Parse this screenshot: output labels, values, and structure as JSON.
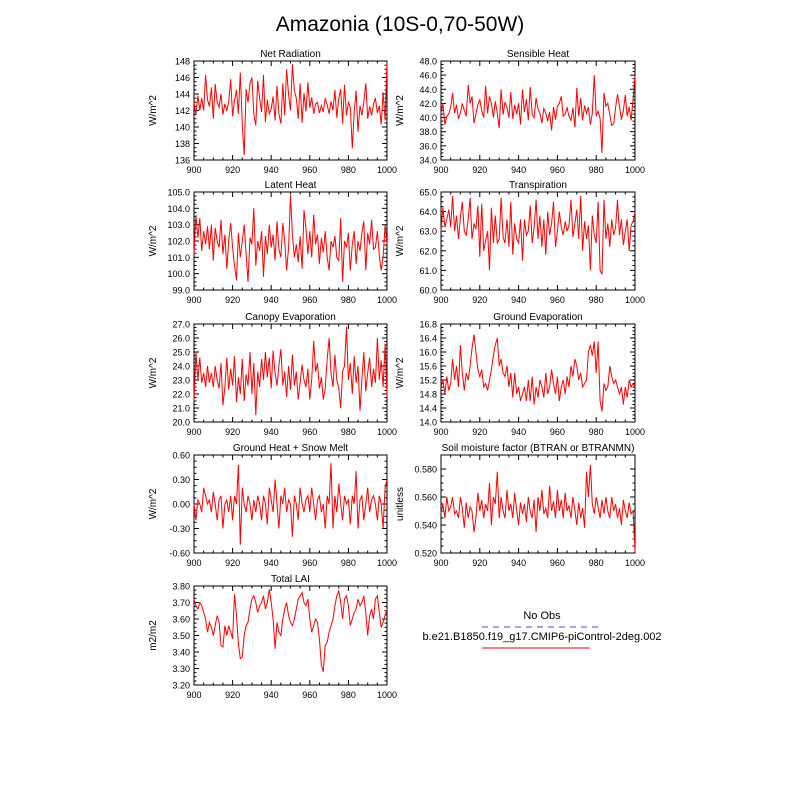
{
  "figure_title": "Amazonia (10S-0,70-50W)",
  "series_color": "#ff0000",
  "obs_color": "#4444dd",
  "legend": {
    "obs_label": "No Obs",
    "model_label": "b.e21.B1850.f19_g17.CMIP6-piControl-2deg.002"
  },
  "chart_data": [
    {
      "type": "line",
      "title": "Net Radiation",
      "ylabel": "W/m^2",
      "xlim": [
        900,
        1000
      ],
      "xticks": [
        900,
        920,
        940,
        960,
        980,
        1000
      ],
      "ylim": [
        136,
        148
      ],
      "yticks": [
        "136",
        "138",
        "140",
        "142",
        "144",
        "146",
        "148"
      ],
      "x_start": 900,
      "x_end": 1000,
      "values": [
        143.0,
        141.5,
        143.8,
        142.0,
        143.5,
        142.0,
        146.3,
        143.3,
        142.5,
        144.8,
        141.0,
        145.2,
        143.0,
        142.4,
        144.0,
        141.5,
        142.8,
        142.0,
        143.0,
        145.8,
        141.3,
        143.2,
        144.5,
        141.6,
        146.6,
        140.2,
        136.6,
        144.6,
        143.0,
        145.3,
        146.0,
        141.6,
        140.2,
        145.6,
        143.5,
        141.8,
        146.3,
        140.6,
        143.3,
        141.6,
        142.2,
        143.7,
        140.8,
        145.0,
        141.6,
        140.4,
        145.3,
        141.4,
        147.0,
        143.9,
        142.0,
        147.6,
        144.4,
        143.5,
        141.0,
        145.3,
        140.5,
        144.1,
        141.9,
        145.4,
        142.3,
        143.6,
        141.6,
        142.8,
        143.0,
        141.7,
        142.6,
        141.8,
        143.5,
        142.7,
        141.6,
        143.1,
        142.0,
        144.5,
        141.1,
        143.5,
        144.6,
        140.4,
        145.1,
        141.4,
        143.0,
        142.4,
        137.4,
        141.8,
        144.4,
        139.4,
        142.6,
        141.4,
        143.0,
        145.3,
        141.0,
        142.5,
        141.4,
        142.8,
        143.5,
        141.7,
        142.6,
        140.3,
        144.2,
        140.8,
        147.8
      ]
    },
    {
      "type": "line",
      "title": "Sensible Heat",
      "ylabel": "W/m^2",
      "xlim": [
        900,
        1000
      ],
      "xticks": [
        900,
        920,
        940,
        960,
        980,
        1000
      ],
      "ylim": [
        34,
        48
      ],
      "yticks": [
        "34.0",
        "36.0",
        "38.0",
        "40.0",
        "42.0",
        "44.0",
        "46.0",
        "48.0"
      ],
      "x_start": 900,
      "x_end": 1000,
      "values": [
        40.5,
        42.0,
        39.0,
        40.2,
        40.5,
        41.5,
        43.5,
        40.6,
        41.8,
        39.8,
        40.7,
        42.0,
        41.0,
        40.2,
        44.6,
        42.0,
        43.0,
        39.2,
        40.5,
        41.8,
        42.5,
        41.0,
        40.0,
        44.5,
        40.6,
        43.0,
        42.0,
        40.0,
        42.3,
        40.6,
        38.5,
        44.0,
        40.4,
        42.2,
        41.4,
        40.0,
        43.6,
        39.8,
        41.8,
        40.5,
        42.0,
        39.0,
        44.0,
        40.8,
        42.6,
        39.6,
        44.3,
        40.4,
        40.0,
        42.8,
        41.2,
        40.6,
        39.2,
        41.3,
        40.6,
        39.5,
        40.8,
        38.2,
        41.5,
        39.7,
        41.6,
        42.0,
        43.0,
        40.2,
        40.5,
        41.4,
        40.2,
        39.6,
        41.4,
        38.6,
        44.2,
        40.2,
        42.8,
        39.6,
        41.7,
        40.6,
        41.5,
        39.0,
        40.6,
        46.0,
        40.2,
        40.9,
        39.9,
        35.0,
        43.5,
        41.6,
        42.0,
        40.4,
        38.9,
        39.1,
        41.4,
        43.3,
        41.6,
        39.7,
        41.0,
        43.2,
        40.2,
        41.5,
        39.6,
        42.7,
        45.9
      ]
    },
    {
      "type": "line",
      "title": "Latent Heat",
      "ylabel": "W/m^2",
      "xlim": [
        900,
        1000
      ],
      "xticks": [
        900,
        920,
        940,
        960,
        980,
        1000
      ],
      "ylim": [
        99,
        105
      ],
      "yticks": [
        "99.0",
        "100.0",
        "101.0",
        "102.0",
        "103.0",
        "104.0",
        "105.0"
      ],
      "x_start": 900,
      "x_end": 1000,
      "values": [
        101.2,
        103.6,
        102.2,
        103.4,
        101.4,
        102.6,
        101.8,
        102.9,
        101.5,
        103.0,
        100.8,
        102.8,
        102.0,
        101.6,
        103.3,
        101.2,
        102.4,
        100.3,
        102.0,
        103.1,
        101.6,
        100.5,
        99.6,
        102.5,
        101.0,
        102.0,
        103.0,
        101.2,
        99.5,
        102.2,
        101.8,
        104.0,
        100.5,
        102.0,
        101.4,
        102.6,
        99.8,
        102.3,
        101.2,
        103.0,
        101.6,
        102.4,
        100.8,
        103.2,
        101.5,
        101.0,
        103.1,
        102.0,
        100.2,
        101.6,
        104.8,
        102.4,
        101.0,
        101.8,
        100.7,
        102.3,
        100.3,
        103.9,
        102.8,
        101.2,
        102.6,
        101.0,
        103.6,
        101.8,
        102.4,
        100.6,
        102.2,
        101.3,
        102.6,
        101.0,
        100.2,
        102.0,
        101.6,
        102.3,
        101.0,
        100.8,
        103.4,
        99.5,
        102.0,
        101.6,
        102.5,
        100.2,
        101.8,
        102.6,
        100.6,
        102.0,
        101.4,
        102.5,
        103.2,
        100.2,
        102.5,
        101.8,
        103.3,
        101.5,
        101.6,
        102.6,
        101.1,
        100.2,
        101.0,
        103.0,
        101.8
      ]
    },
    {
      "type": "line",
      "title": "Transpiration",
      "ylabel": "W/m^2",
      "xlim": [
        900,
        1000
      ],
      "xticks": [
        900,
        920,
        940,
        960,
        980,
        1000
      ],
      "ylim": [
        60,
        65
      ],
      "yticks": [
        "60.0",
        "61.0",
        "62.0",
        "63.0",
        "64.0",
        "65.0"
      ],
      "x_start": 900,
      "x_end": 1000,
      "values": [
        63.0,
        64.2,
        63.2,
        63.6,
        64.1,
        63.2,
        64.8,
        63.0,
        63.8,
        62.6,
        63.7,
        64.5,
        63.0,
        62.8,
        63.6,
        64.7,
        62.6,
        63.4,
        63.1,
        64.3,
        61.7,
        64.4,
        62.0,
        62.5,
        63.0,
        61.0,
        64.2,
        62.4,
        63.8,
        62.4,
        62.6,
        64.7,
        62.7,
        62.4,
        63.6,
        62.2,
        64.5,
        61.8,
        63.4,
        62.6,
        62.4,
        63.6,
        61.5,
        63.6,
        62.8,
        63.0,
        64.3,
        62.4,
        63.2,
        64.6,
        62.6,
        63.8,
        62.2,
        63.6,
        61.8,
        64.0,
        62.8,
        63.4,
        64.5,
        62.2,
        63.0,
        64.0,
        63.2,
        62.8,
        63.5,
        63.0,
        63.3,
        64.6,
        62.7,
        63.4,
        64.1,
        62.6,
        64.8,
        62.0,
        63.5,
        62.6,
        63.3,
        61.0,
        63.8,
        62.8,
        62.4,
        64.5,
        61.0,
        60.8,
        64.6,
        62.6,
        63.4,
        62.2,
        63.6,
        62.8,
        63.2,
        64.6,
        62.8,
        63.6,
        62.3,
        63.0,
        63.6,
        62.0,
        63.3,
        63.5,
        64.0
      ]
    },
    {
      "type": "line",
      "title": "Canopy Evaporation",
      "ylabel": "W/m^2",
      "xlim": [
        900,
        1000
      ],
      "xticks": [
        900,
        920,
        940,
        960,
        980,
        1000
      ],
      "ylim": [
        20,
        27
      ],
      "yticks": [
        "20.0",
        "21.0",
        "22.0",
        "23.0",
        "24.0",
        "25.0",
        "26.0",
        "27.0"
      ],
      "x_start": 900,
      "x_end": 1000,
      "values": [
        21.5,
        25.0,
        23.0,
        24.6,
        22.8,
        23.5,
        22.5,
        24.0,
        22.8,
        23.5,
        22.5,
        24.0,
        23.0,
        22.4,
        24.2,
        21.2,
        22.5,
        24.6,
        22.3,
        23.8,
        22.6,
        24.7,
        21.4,
        23.2,
        22.0,
        24.5,
        21.5,
        23.4,
        22.6,
        25.0,
        22.0,
        24.2,
        20.5,
        23.6,
        22.5,
        24.5,
        23.0,
        25.0,
        23.2,
        24.6,
        22.4,
        25.1,
        23.5,
        22.6,
        24.0,
        25.2,
        22.6,
        23.6,
        21.8,
        24.0,
        22.3,
        24.8,
        22.6,
        23.6,
        21.6,
        22.8,
        24.1,
        23.0,
        22.5,
        23.8,
        21.6,
        23.0,
        25.8,
        23.6,
        24.2,
        22.4,
        23.2,
        21.6,
        22.4,
        24.5,
        26.0,
        23.5,
        22.5,
        24.8,
        23.0,
        22.4,
        21.0,
        23.6,
        24.0,
        26.8,
        23.0,
        24.2,
        22.0,
        24.7,
        22.8,
        24.0,
        20.8,
        23.0,
        25.0,
        22.2,
        23.5,
        24.6,
        22.5,
        23.8,
        22.8,
        26.0,
        23.0,
        24.4,
        22.5,
        25.6,
        21.8
      ]
    },
    {
      "type": "line",
      "title": "Ground Evaporation",
      "ylabel": "W/m^2",
      "xlim": [
        900,
        1000
      ],
      "xticks": [
        900,
        920,
        940,
        960,
        980,
        1000
      ],
      "ylim": [
        14,
        16.8
      ],
      "yticks": [
        "14.0",
        "14.4",
        "14.8",
        "15.2",
        "15.6",
        "16.0",
        "16.4",
        "16.8"
      ],
      "x_start": 900,
      "x_end": 1000,
      "values": [
        15.0,
        15.2,
        14.8,
        15.3,
        14.9,
        15.1,
        15.8,
        15.2,
        15.6,
        15.0,
        16.2,
        15.4,
        14.9,
        15.4,
        15.2,
        15.6,
        16.1,
        16.5,
        16.0,
        15.5,
        15.3,
        15.5,
        15.0,
        15.1,
        14.9,
        15.2,
        15.5,
        15.9,
        16.2,
        16.4,
        15.6,
        15.8,
        15.4,
        15.3,
        15.6,
        15.0,
        15.4,
        14.7,
        15.4,
        14.8,
        15.0,
        14.6,
        14.8,
        15.0,
        14.6,
        15.2,
        14.6,
        15.3,
        14.5,
        15.0,
        14.7,
        15.2,
        15.0,
        14.7,
        15.4,
        14.8,
        15.0,
        15.5,
        15.1,
        14.8,
        15.3,
        14.6,
        15.0,
        15.2,
        14.8,
        15.3,
        15.0,
        15.6,
        15.3,
        15.8,
        15.6,
        15.2,
        15.4,
        15.0,
        15.1,
        15.2,
        16.0,
        16.2,
        15.9,
        16.3,
        15.4,
        16.3,
        14.6,
        14.3,
        15.1,
        14.9,
        15.0,
        15.6,
        15.3,
        15.1,
        15.2,
        15.0,
        14.8,
        15.0,
        14.5,
        15.0,
        14.7,
        15.2,
        15.0,
        15.1,
        15.0
      ]
    },
    {
      "type": "line",
      "title": "Ground Heat + Snow Melt",
      "ylabel": "W/m^2",
      "xlim": [
        900,
        1000
      ],
      "xticks": [
        900,
        920,
        940,
        960,
        980,
        1000
      ],
      "ylim": [
        -0.6,
        0.6
      ],
      "yticks": [
        "-0.60",
        "-0.30",
        "0.00",
        "0.30",
        "0.60"
      ],
      "x_start": 900,
      "x_end": 1000,
      "values": [
        0.0,
        -0.2,
        0.05,
        0.0,
        -0.1,
        0.2,
        0.1,
        0.0,
        0.05,
        -0.1,
        0.15,
        0.0,
        -0.2,
        0.05,
        0.1,
        -0.3,
        0.0,
        0.05,
        -0.1,
        0.1,
        -0.2,
        0.1,
        0.0,
        0.48,
        -0.5,
        0.2,
        0.0,
        -0.1,
        0.1,
        0.0,
        -0.2,
        0.05,
        -0.1,
        0.1,
        0.0,
        -0.2,
        0.1,
        0.0,
        -0.25,
        0.2,
        0.05,
        -0.1,
        0.3,
        0.0,
        -0.3,
        0.1,
        0.0,
        0.2,
        -0.1,
        0.05,
        0.0,
        -0.4,
        0.1,
        0.0,
        -0.2,
        0.2,
        0.0,
        -0.1,
        0.05,
        0.1,
        -0.1,
        0.2,
        0.0,
        -0.2,
        0.05,
        0.1,
        -0.1,
        0.0,
        -0.3,
        0.1,
        0.0,
        0.5,
        -0.3,
        0.1,
        -0.1,
        0.25,
        0.0,
        -0.2,
        0.1,
        0.0,
        0.05,
        -0.25,
        0.1,
        0.0,
        0.4,
        -0.3,
        0.05,
        0.1,
        -0.2,
        0.0,
        0.2,
        -0.1,
        0.05,
        0.1,
        0.0,
        -0.2,
        0.1,
        0.0,
        -0.3,
        0.2,
        0.3
      ]
    },
    {
      "type": "line",
      "title": "Soil moisture factor (BTRAN or BTRANMN)",
      "ylabel": "unitless",
      "xlim": [
        900,
        1000
      ],
      "xticks": [
        900,
        920,
        940,
        960,
        980,
        1000
      ],
      "ylim": [
        0.52,
        0.59
      ],
      "yticks": [
        "0.520",
        "0.540",
        "0.560",
        "0.580"
      ],
      "x_start": 900,
      "x_end": 1000,
      "values": [
        0.548,
        0.555,
        0.545,
        0.56,
        0.55,
        0.553,
        0.56,
        0.548,
        0.55,
        0.545,
        0.56,
        0.552,
        0.538,
        0.556,
        0.545,
        0.553,
        0.55,
        0.535,
        0.545,
        0.563,
        0.55,
        0.558,
        0.545,
        0.555,
        0.55,
        0.57,
        0.54,
        0.56,
        0.555,
        0.578,
        0.545,
        0.56,
        0.55,
        0.545,
        0.565,
        0.55,
        0.555,
        0.545,
        0.563,
        0.55,
        0.54,
        0.556,
        0.548,
        0.555,
        0.542,
        0.56,
        0.55,
        0.545,
        0.558,
        0.535,
        0.56,
        0.55,
        0.565,
        0.548,
        0.552,
        0.545,
        0.568,
        0.55,
        0.557,
        0.545,
        0.565,
        0.55,
        0.558,
        0.545,
        0.563,
        0.55,
        0.554,
        0.545,
        0.56,
        0.55,
        0.54,
        0.556,
        0.545,
        0.552,
        0.538,
        0.578,
        0.56,
        0.583,
        0.555,
        0.548,
        0.56,
        0.553,
        0.545,
        0.558,
        0.548,
        0.56,
        0.55,
        0.545,
        0.56,
        0.55,
        0.555,
        0.545,
        0.552,
        0.54,
        0.558,
        0.55,
        0.545,
        0.556,
        0.548,
        0.55,
        0.521
      ]
    },
    {
      "type": "line",
      "title": "Total LAI",
      "ylabel": "m2/m2",
      "xlim": [
        900,
        1000
      ],
      "xticks": [
        900,
        920,
        940,
        960,
        980,
        1000
      ],
      "ylim": [
        3.2,
        3.8
      ],
      "yticks": [
        "3.20",
        "3.30",
        "3.40",
        "3.50",
        "3.60",
        "3.70",
        "3.80"
      ],
      "x_start": 900,
      "x_end": 1000,
      "values": [
        3.72,
        3.68,
        3.66,
        3.7,
        3.68,
        3.64,
        3.6,
        3.52,
        3.58,
        3.55,
        3.5,
        3.56,
        3.62,
        3.58,
        3.44,
        3.43,
        3.56,
        3.5,
        3.56,
        3.52,
        3.48,
        3.75,
        3.62,
        3.45,
        3.36,
        3.37,
        3.5,
        3.56,
        3.58,
        3.66,
        3.72,
        3.74,
        3.7,
        3.64,
        3.68,
        3.7,
        3.74,
        3.66,
        3.7,
        3.78,
        3.7,
        3.6,
        3.42,
        3.58,
        3.52,
        3.5,
        3.6,
        3.66,
        3.7,
        3.62,
        3.58,
        3.56,
        3.6,
        3.66,
        3.72,
        3.74,
        3.76,
        3.7,
        3.68,
        3.72,
        3.6,
        3.52,
        3.56,
        3.6,
        3.58,
        3.48,
        3.32,
        3.28,
        3.44,
        3.46,
        3.52,
        3.56,
        3.6,
        3.68,
        3.74,
        3.77,
        3.7,
        3.6,
        3.72,
        3.74,
        3.68,
        3.56,
        3.6,
        3.64,
        3.66,
        3.72,
        3.68,
        3.7,
        3.74,
        3.64,
        3.5,
        3.62,
        3.66,
        3.6,
        3.72,
        3.74,
        3.64,
        3.55,
        3.58,
        3.62,
        3.66
      ]
    }
  ]
}
